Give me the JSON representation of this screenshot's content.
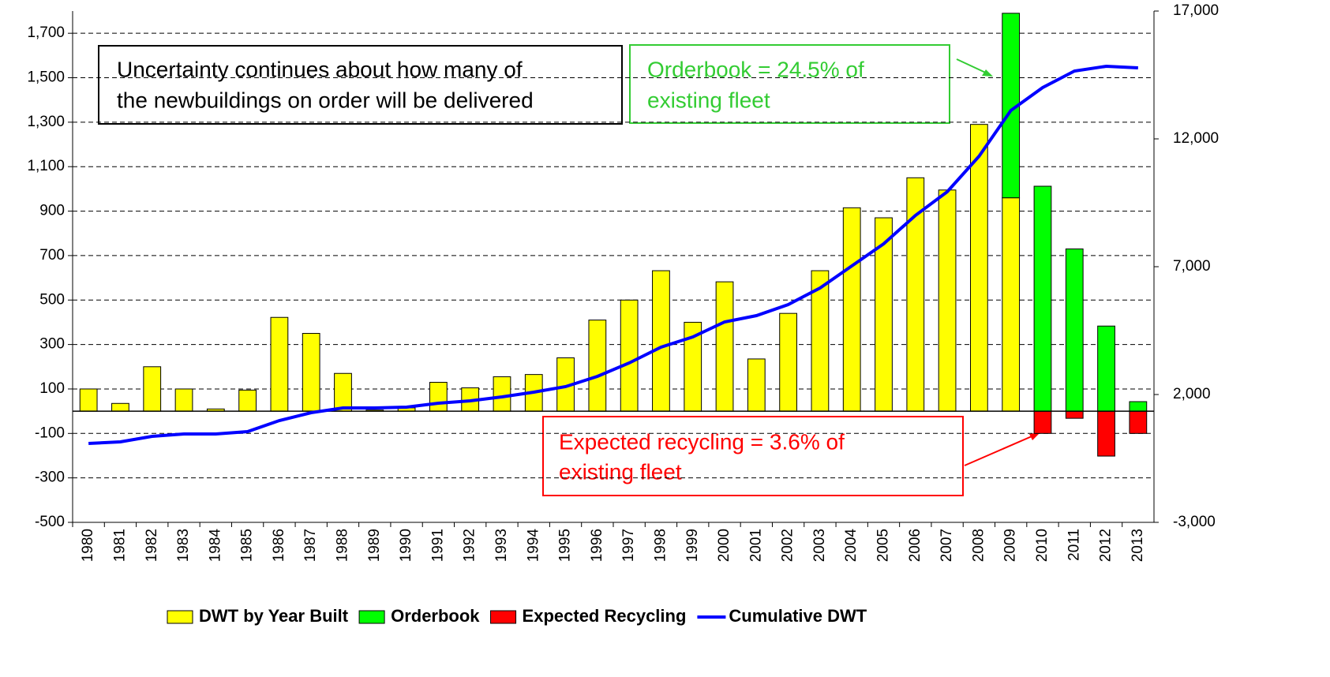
{
  "chart_data": {
    "type": "bar",
    "categories": [
      "1980",
      "1981",
      "1982",
      "1983",
      "1984",
      "1985",
      "1986",
      "1987",
      "1988",
      "1989",
      "1990",
      "1991",
      "1992",
      "1993",
      "1994",
      "1995",
      "1996",
      "1997",
      "1998",
      "1999",
      "2000",
      "2001",
      "2002",
      "2003",
      "2004",
      "2005",
      "2006",
      "2007",
      "2008",
      "2009",
      "2010",
      "2011",
      "2012",
      "2013"
    ],
    "series": [
      {
        "name": "DWT by Year Built",
        "color": "#ffff00",
        "values": [
          100,
          35,
          200,
          100,
          10,
          95,
          422,
          350,
          170,
          5,
          15,
          130,
          105,
          155,
          165,
          240,
          410,
          500,
          632,
          400,
          582,
          235,
          440,
          632,
          915,
          870,
          1050,
          995,
          1290,
          960,
          0,
          0,
          0,
          0
        ]
      },
      {
        "name": "Orderbook",
        "color": "#00ff00",
        "values": [
          0,
          0,
          0,
          0,
          0,
          0,
          0,
          0,
          0,
          0,
          0,
          0,
          0,
          0,
          0,
          0,
          0,
          0,
          0,
          0,
          0,
          0,
          0,
          0,
          0,
          0,
          0,
          0,
          0,
          830,
          1012,
          730,
          383,
          43
        ]
      },
      {
        "name": "Expected Recycling",
        "color": "#ff0000",
        "values": [
          0,
          0,
          0,
          0,
          0,
          0,
          0,
          0,
          0,
          0,
          0,
          0,
          0,
          0,
          0,
          0,
          0,
          0,
          0,
          0,
          0,
          0,
          0,
          0,
          0,
          0,
          0,
          0,
          0,
          0,
          -100,
          -32,
          -202,
          -100
        ]
      },
      {
        "name": "Cumulative DWT",
        "color": "#0000ff",
        "type": "line",
        "axis": "y2",
        "values": [
          86,
          148,
          364,
          457,
          457,
          549,
          981,
          1290,
          1475,
          1475,
          1506,
          1660,
          1753,
          1907,
          2093,
          2309,
          2710,
          3235,
          3852,
          4253,
          4840,
          5086,
          5519,
          6167,
          7031,
          7895,
          9006,
          9932,
          11321,
          13111,
          14006,
          14654,
          14840,
          14778
        ]
      }
    ],
    "ylim": [
      -500,
      1800
    ],
    "yticks": [
      -500,
      -300,
      -100,
      100,
      300,
      500,
      700,
      900,
      {
        "value": 1100,
        "label": "1,100"
      },
      {
        "value": 1300,
        "label": "1,300"
      },
      {
        "value": 1500,
        "label": "1,500"
      },
      {
        "value": 1700,
        "label": "1,700"
      }
    ],
    "y2lim": [
      -3000,
      17000
    ],
    "y2ticks": [
      {
        "value": -3000,
        "label": "-3,000"
      },
      {
        "value": 2000,
        "label": "2,000"
      },
      {
        "value": 7000,
        "label": "7,000"
      },
      {
        "value": 12000,
        "label": "12,000"
      },
      {
        "value": 17000,
        "label": "17,000"
      }
    ],
    "grid": true,
    "annotations": [
      "Uncertainty continues about how many of",
      "the newbuildings on order will be delivered",
      "Orderbook = 24.5% of",
      "existing fleet",
      "Expected recycling = 3.6% of",
      "existing fleet"
    ]
  }
}
